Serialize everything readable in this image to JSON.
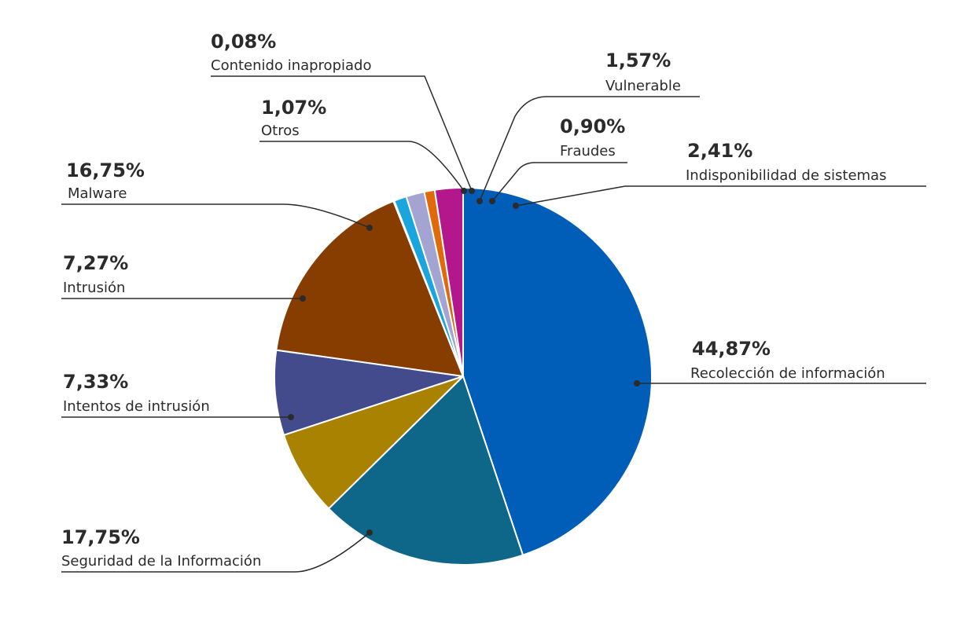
{
  "chart_data": {
    "type": "pie",
    "title": "",
    "slices": [
      {
        "label": "Recolección de información",
        "value": 44.87,
        "display": "44,87%",
        "color": "#005eb8"
      },
      {
        "label": "Seguridad de la Información",
        "value": 17.75,
        "display": "17,75%",
        "color": "#0e6688"
      },
      {
        "label": "Intentos de intrusión",
        "value": 7.33,
        "display": "7,33%",
        "color": "#a88200"
      },
      {
        "label": "Intrusión",
        "value": 7.27,
        "display": "7,27%",
        "color": "#434b8c"
      },
      {
        "label": "Malware",
        "value": 16.75,
        "display": "16,75%",
        "color": "#873d00"
      },
      {
        "label": "Contenido inapropiado",
        "value": 0.08,
        "display": "0,08%",
        "color": "#3c3c8c"
      },
      {
        "label": "Otros",
        "value": 1.07,
        "display": "1,07%",
        "color": "#1aa6dc"
      },
      {
        "label": "Vulnerable",
        "value": 1.57,
        "display": "1,57%",
        "color": "#a3a4d2"
      },
      {
        "label": "Fraudes",
        "value": 0.9,
        "display": "0,90%",
        "color": "#e06a0a"
      },
      {
        "label": "Indisponibilidad de sistemas",
        "value": 2.41,
        "display": "2,41%",
        "color": "#b4168c"
      }
    ]
  }
}
